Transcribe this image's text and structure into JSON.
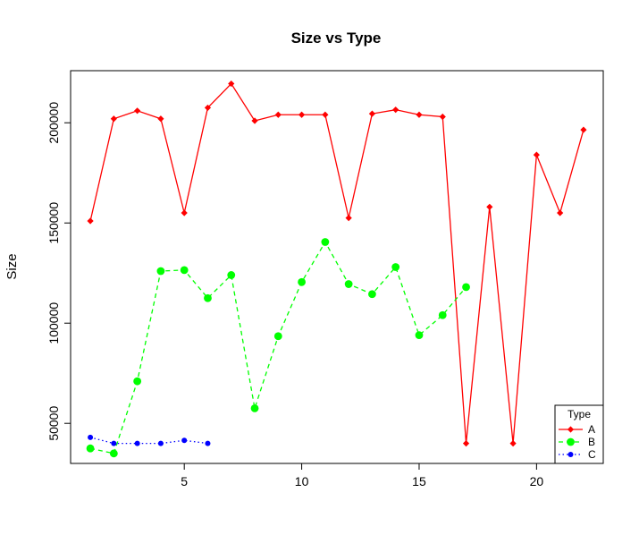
{
  "chart_data": {
    "type": "line",
    "title": "Size vs Type",
    "xlabel": "",
    "ylabel": "Size",
    "xlim": [
      0.16,
      22.84
    ],
    "ylim": [
      30000,
      226000
    ],
    "x_ticks": [
      5,
      10,
      15,
      20
    ],
    "y_ticks": [
      50000,
      100000,
      150000,
      200000
    ],
    "grid": false,
    "legend": {
      "title": "Type",
      "position": "bottom-right"
    },
    "series": [
      {
        "name": "A",
        "color": "#ff0000",
        "line_style": "solid",
        "marker": "diamond",
        "x": [
          1,
          2,
          3,
          4,
          5,
          6,
          7,
          8,
          9,
          10,
          11,
          12,
          13,
          14,
          15,
          16,
          17,
          18,
          19,
          20,
          21,
          22
        ],
        "y": [
          151000,
          202000,
          206000,
          202000,
          155000,
          207500,
          219500,
          201000,
          204000,
          204000,
          204000,
          152500,
          204500,
          206500,
          204000,
          203000,
          40000,
          158000,
          40000,
          184000,
          155000,
          196500
        ]
      },
      {
        "name": "B",
        "color": "#00ff00",
        "line_style": "dashed",
        "marker": "circle",
        "x": [
          1,
          2,
          3,
          4,
          5,
          6,
          7,
          8,
          9,
          10,
          11,
          12,
          13,
          14,
          15,
          16,
          17
        ],
        "y": [
          37500,
          35000,
          71000,
          126000,
          126500,
          112500,
          124000,
          57500,
          93500,
          120500,
          140500,
          119500,
          114500,
          128000,
          94000,
          104000,
          118000
        ]
      },
      {
        "name": "C",
        "color": "#0000ff",
        "line_style": "dotted",
        "marker": "circle-small",
        "x": [
          1,
          2,
          3,
          4,
          5,
          6
        ],
        "y": [
          43000,
          40000,
          40000,
          40000,
          41500,
          40000
        ]
      }
    ]
  }
}
